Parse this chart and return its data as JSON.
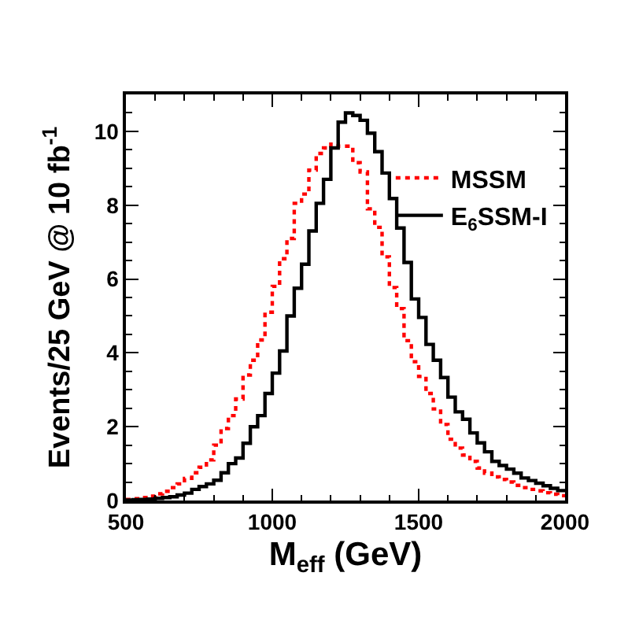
{
  "chart_data": {
    "type": "histogram",
    "xlabel": "M$_{eff}$ (GeV)",
    "ylabel": "Events/25 GeV @ 10 fb$^{-1}$",
    "bins": [
      500,
      525,
      550,
      575,
      600,
      625,
      650,
      675,
      700,
      725,
      750,
      775,
      800,
      825,
      850,
      875,
      900,
      925,
      950,
      975,
      1000,
      1025,
      1050,
      1075,
      1100,
      1125,
      1150,
      1175,
      1200,
      1225,
      1250,
      1275,
      1300,
      1325,
      1350,
      1375,
      1400,
      1425,
      1450,
      1475,
      1500,
      1525,
      1550,
      1575,
      1600,
      1625,
      1650,
      1675,
      1700,
      1725,
      1750,
      1775,
      1800,
      1825,
      1850,
      1875,
      1900,
      1925,
      1950,
      1975,
      2000
    ],
    "series": [
      {
        "name": "MSSM",
        "color": "#ff0000",
        "line_style": "dotted",
        "values": [
          0.03,
          0.05,
          0.08,
          0.12,
          0.18,
          0.25,
          0.35,
          0.45,
          0.6,
          0.75,
          0.9,
          1.1,
          1.5,
          1.95,
          2.3,
          2.75,
          3.4,
          3.8,
          4.35,
          5.1,
          5.8,
          6.55,
          7.1,
          8.05,
          8.3,
          8.95,
          9.4,
          9.55,
          9.65,
          9.6,
          9.6,
          9.15,
          8.9,
          7.9,
          7.4,
          6.6,
          5.77,
          5.2,
          4.33,
          3.76,
          3.36,
          2.9,
          2.48,
          2.06,
          1.66,
          1.42,
          1.23,
          1.06,
          0.88,
          0.74,
          0.64,
          0.57,
          0.5,
          0.41,
          0.35,
          0.3,
          0.26,
          0.21,
          0.17,
          0.13
        ]
      },
      {
        "name": "E$_{6}$SSM-I",
        "color": "#000000",
        "line_style": "solid",
        "values": [
          0.01,
          0.02,
          0.03,
          0.04,
          0.06,
          0.08,
          0.1,
          0.15,
          0.2,
          0.3,
          0.38,
          0.45,
          0.55,
          0.75,
          1.0,
          1.15,
          1.55,
          2.0,
          2.3,
          2.9,
          3.45,
          4.05,
          5.0,
          5.75,
          6.4,
          7.3,
          8.05,
          8.7,
          9.55,
          10.25,
          10.5,
          10.43,
          10.3,
          9.95,
          9.45,
          8.87,
          8.18,
          7.38,
          6.45,
          5.46,
          4.96,
          4.23,
          3.8,
          3.33,
          2.8,
          2.4,
          2.2,
          1.83,
          1.56,
          1.32,
          1.06,
          0.95,
          0.85,
          0.74,
          0.61,
          0.54,
          0.47,
          0.4,
          0.33,
          0.27
        ]
      }
    ],
    "xlim": [
      500,
      2000
    ],
    "xticks": [
      500,
      1000,
      1500,
      2000
    ],
    "ylim": [
      0,
      11
    ],
    "yticks": [
      0,
      2,
      4,
      6,
      8,
      10
    ],
    "grid": false,
    "legend": "top right"
  }
}
